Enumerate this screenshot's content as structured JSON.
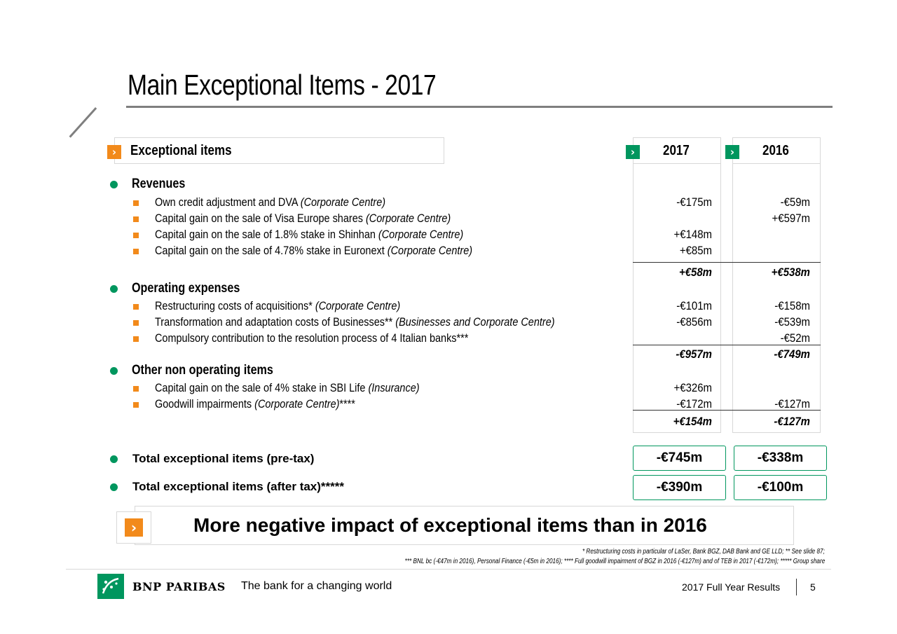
{
  "title": "Main Exceptional Items - 2017",
  "table_header": {
    "label": "Exceptional items",
    "col1": "2017",
    "col2": "2016"
  },
  "sections": {
    "revenues": {
      "label": "Revenues",
      "items": [
        {
          "text": "Own credit adjustment and DVA",
          "note": "(Corporate Centre)",
          "v2017": "-€175m",
          "v2016": "-€59m"
        },
        {
          "text": "Capital gain on the sale of Visa Europe shares",
          "note": "(Corporate Centre)",
          "v2017": "",
          "v2016": "+€597m"
        },
        {
          "text": "Capital gain on the sale of 1.8% stake in Shinhan",
          "note": "(Corporate Centre)",
          "v2017": "+€148m",
          "v2016": ""
        },
        {
          "text": "Capital gain on the sale of 4.78% stake in Euronext",
          "note": "(Corporate Centre)",
          "v2017": "+€85m",
          "v2016": ""
        }
      ],
      "subtotal_2017": "+€58m",
      "subtotal_2016": "+€538m"
    },
    "opex": {
      "label": "Operating expenses",
      "items": [
        {
          "text": "Restructuring costs of acquisitions*",
          "note": "(Corporate Centre)",
          "v2017": "-€101m",
          "v2016": "-€158m"
        },
        {
          "text": "Transformation and adaptation costs of Businesses**",
          "note": "(Businesses and Corporate Centre)",
          "v2017": "-€856m",
          "v2016": "-€539m"
        },
        {
          "text": "Compulsory contribution to the resolution process of 4 Italian banks***",
          "note": "",
          "v2017": "",
          "v2016": "-€52m"
        }
      ],
      "subtotal_2017": "-€957m",
      "subtotal_2016": "-€749m"
    },
    "other": {
      "label": "Other non operating items",
      "items": [
        {
          "text": "Capital gain on the sale of 4% stake in SBI Life",
          "note": "(Insurance)",
          "suffix": "",
          "v2017": "+€326m",
          "v2016": ""
        },
        {
          "text": "Goodwill impairments",
          "note": "(Corporate Centre)",
          "suffix": "****",
          "v2017": "-€172m",
          "v2016": "-€127m"
        }
      ],
      "subtotal_2017": "+€154m",
      "subtotal_2016": "-€127m"
    }
  },
  "totals": {
    "pretax_label": "Total exceptional items (pre-tax)",
    "pretax_2017": "-€745m",
    "pretax_2016": "-€338m",
    "aftertax_label": "Total exceptional items (after tax)*****",
    "aftertax_2017": "-€390m",
    "aftertax_2016": "-€100m"
  },
  "banner": "More negative impact of exceptional items than in 2016",
  "footnotes": {
    "line1": "* Restructuring costs in particular of LaSer, Bank BGZ, DAB Bank and GE LLD; ** See slide 87;",
    "line2": "*** BNL bc (-€47m in 2016), Personal Finance (-€5m in 2016); **** Full goodwill impairment of BGZ in 2016 (-€127m) and of TEB in 2017 (-€172m); ***** Group share"
  },
  "footer": {
    "logo_text": "BNP PARIBAS",
    "tagline": "The bank for a changing world",
    "report": "2017 Full Year Results",
    "page": "5"
  },
  "colors": {
    "green": "#00965e",
    "orange": "#f28a1b",
    "rule_grey": "#7f7f7f"
  }
}
